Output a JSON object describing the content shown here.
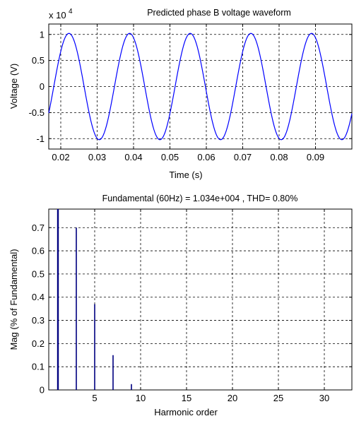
{
  "chart_data": [
    {
      "type": "line",
      "title": "Predicted phase B voltage waveform",
      "xlabel": "Time (s)",
      "ylabel": "Voltage (V)",
      "y_multiplier_label": {
        "base": "x 10",
        "exponent": "4"
      },
      "xlim": [
        0.0167,
        0.1
      ],
      "ylim": [
        -1.2,
        1.2
      ],
      "x_ticks": [
        0.02,
        0.03,
        0.04,
        0.05,
        0.06,
        0.07,
        0.08,
        0.09
      ],
      "x_tick_labels": [
        "0.02",
        "0.03",
        "0.04",
        "0.05",
        "0.06",
        "0.07",
        "0.08",
        "0.09"
      ],
      "y_ticks": [
        -1,
        -0.5,
        0,
        0.5,
        1
      ],
      "y_tick_labels": [
        "-1",
        "-0.5",
        "0",
        "0.5",
        "1"
      ],
      "grid": true,
      "series": [
        {
          "frequency_hz": 60,
          "amplitude": 1.02,
          "phase_deg": -30.6,
          "x_start": 0.0167,
          "x_end": 0.1,
          "color": "#0000ff"
        }
      ]
    },
    {
      "type": "bar",
      "title": "Fundamental (60Hz) = 1.034e+004 , THD= 0.80%",
      "xlabel": "Harmonic order",
      "ylabel": "Mag (% of Fundamental)",
      "xlim": [
        0,
        33
      ],
      "ylim": [
        0,
        0.78
      ],
      "x_ticks": [
        5,
        10,
        15,
        20,
        25,
        30
      ],
      "x_tick_labels": [
        "5",
        "10",
        "15",
        "20",
        "25",
        "30"
      ],
      "y_ticks": [
        0,
        0.1,
        0.2,
        0.3,
        0.4,
        0.5,
        0.6,
        0.7
      ],
      "y_tick_labels": [
        "0",
        "0.1",
        "0.2",
        "0.3",
        "0.4",
        "0.5",
        "0.6",
        "0.7"
      ],
      "grid": true,
      "color": "#000080",
      "harmonics": [
        1,
        3,
        5,
        7,
        9
      ],
      "values": [
        0.78,
        0.7,
        0.37,
        0.15,
        0.025
      ]
    }
  ]
}
